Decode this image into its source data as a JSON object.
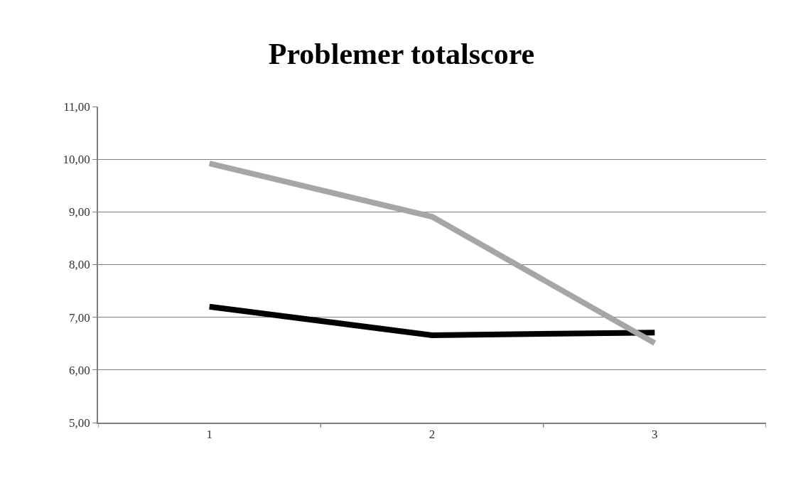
{
  "chart_data": {
    "type": "line",
    "title": "Problemer totalscore",
    "categories": [
      "1",
      "2",
      "3"
    ],
    "series": [
      {
        "color": "#000000",
        "values": [
          7.2,
          6.66,
          6.71
        ]
      },
      {
        "color": "#a6a6a6",
        "values": [
          9.92,
          8.91,
          6.51
        ]
      }
    ],
    "ylim": [
      5,
      11
    ],
    "yticks": [
      {
        "value": 5,
        "label": "5,00"
      },
      {
        "value": 6,
        "label": "6,00"
      },
      {
        "value": 7,
        "label": "7,00"
      },
      {
        "value": 8,
        "label": "8,00"
      },
      {
        "value": 9,
        "label": "9,00"
      },
      {
        "value": 10,
        "label": "10,00"
      },
      {
        "value": 11,
        "label": "11,00"
      }
    ],
    "grid": "y",
    "marker": "none",
    "line_style": "solid"
  }
}
